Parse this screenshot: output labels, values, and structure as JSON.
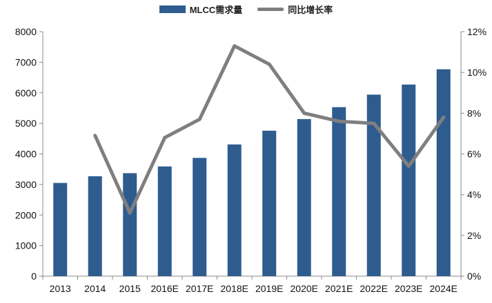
{
  "chart_data": {
    "type": "bar",
    "categories": [
      "2013",
      "2014",
      "2015",
      "2016E",
      "2017E",
      "2018E",
      "2019E",
      "2020E",
      "2021E",
      "2022E",
      "2023E",
      "2024E"
    ],
    "series": [
      {
        "name": "MLCC需求量",
        "type": "bar",
        "axis": "left",
        "color": "#2E5C8F",
        "values": [
          3050,
          3270,
          3370,
          3590,
          3870,
          4310,
          4760,
          5140,
          5530,
          5940,
          6270,
          6770
        ]
      },
      {
        "name": "同比增长率",
        "type": "line",
        "axis": "right",
        "color": "#7f7f7f",
        "values": [
          null,
          6.9,
          3.1,
          6.8,
          7.7,
          11.3,
          10.4,
          8.0,
          7.6,
          7.5,
          5.4,
          7.8
        ]
      }
    ],
    "y_left": {
      "min": 0,
      "max": 8000,
      "ticks": [
        0,
        1000,
        2000,
        3000,
        4000,
        5000,
        6000,
        7000,
        8000
      ]
    },
    "y_right": {
      "min": 0,
      "max": 12,
      "ticks": [
        "0%",
        "2%",
        "4%",
        "6%",
        "8%",
        "10%",
        "12%"
      ]
    },
    "legend_position": "top-center",
    "grid": false
  }
}
